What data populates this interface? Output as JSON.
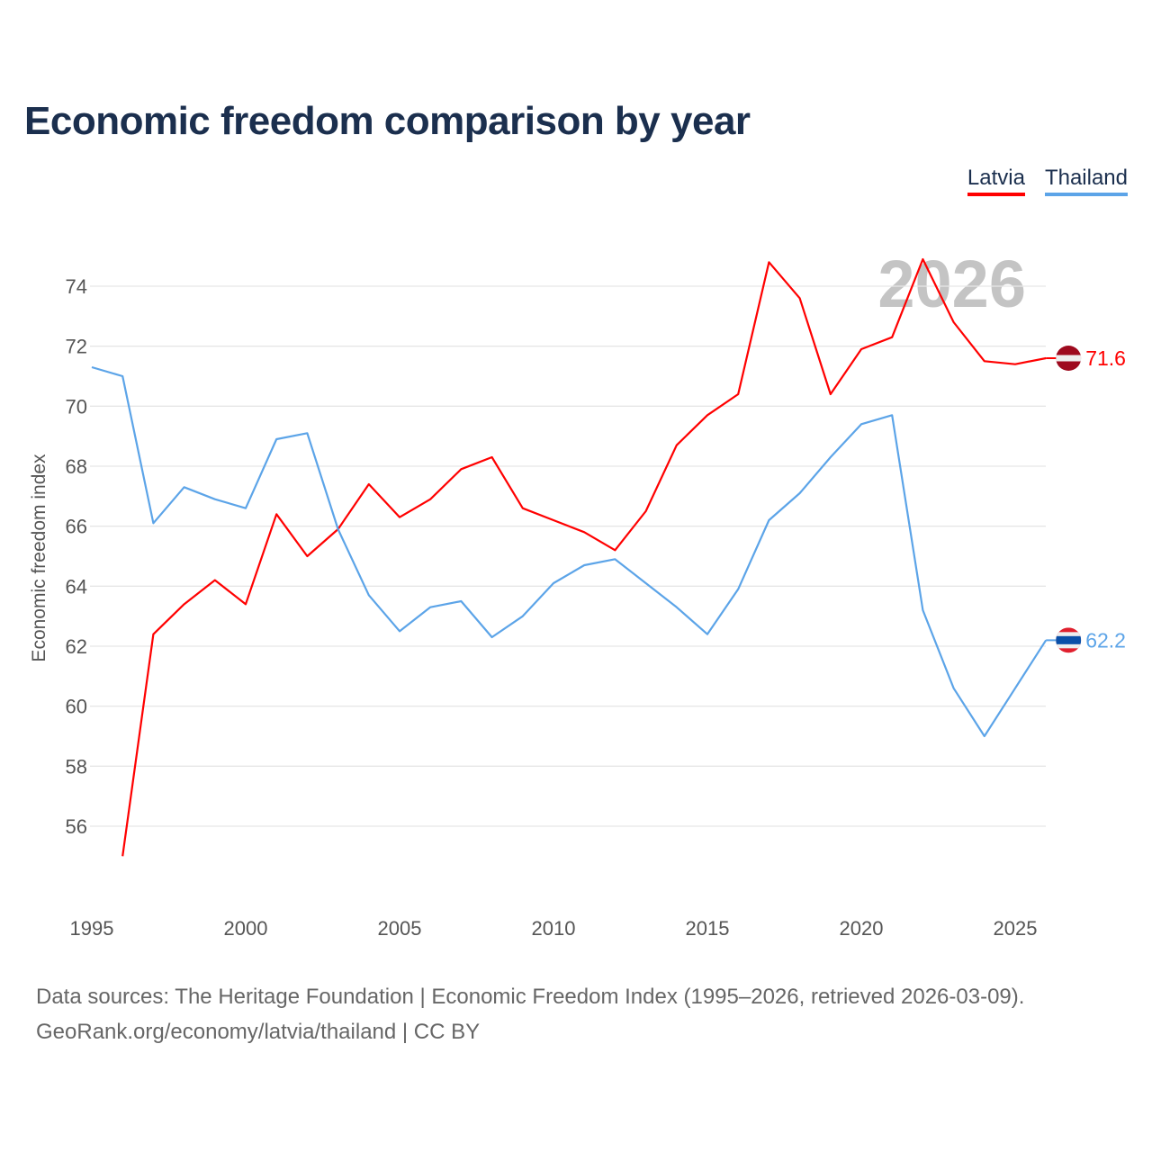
{
  "title": "Economic freedom comparison by year",
  "footer": {
    "line1": "Data sources: The Heritage Foundation | Economic Freedom Index (1995–2026, retrieved 2026-03-09).",
    "line2": "GeoRank.org/economy/latvia/thailand | CC BY"
  },
  "chart_data": {
    "type": "line",
    "title": "Economic freedom comparison by year",
    "xlabel": "",
    "ylabel": "Economic freedom index",
    "year_watermark": "2026",
    "xlim": [
      1995,
      2026
    ],
    "ylim": [
      54,
      76
    ],
    "xticks": [
      "1995",
      "2000",
      "2005",
      "2010",
      "2015",
      "2020",
      "2025"
    ],
    "yticks": [
      "56",
      "58",
      "60",
      "62",
      "64",
      "66",
      "68",
      "70",
      "72",
      "74"
    ],
    "legend_placement": "top-right",
    "series": [
      {
        "name": "Latvia",
        "color": "#ff0000",
        "end_label": "71.6",
        "x": [
          1996,
          1997,
          1998,
          1999,
          2000,
          2001,
          2002,
          2003,
          2004,
          2005,
          2006,
          2007,
          2008,
          2009,
          2010,
          2011,
          2012,
          2013,
          2014,
          2015,
          2016,
          2017,
          2018,
          2019,
          2020,
          2021,
          2022,
          2023,
          2024,
          2025,
          2026
        ],
        "values": [
          55.0,
          62.4,
          63.4,
          64.2,
          63.4,
          66.4,
          65.0,
          65.9,
          67.4,
          66.3,
          66.9,
          67.9,
          68.3,
          66.6,
          66.2,
          65.8,
          65.2,
          66.5,
          68.7,
          69.7,
          70.4,
          74.8,
          73.6,
          70.4,
          71.9,
          72.3,
          74.9,
          72.8,
          71.5,
          71.4,
          71.6
        ]
      },
      {
        "name": "Thailand",
        "color": "#5ca4e8",
        "end_label": "62.2",
        "x": [
          1995,
          1996,
          1997,
          1998,
          1999,
          2000,
          2001,
          2002,
          2003,
          2004,
          2005,
          2006,
          2007,
          2008,
          2009,
          2010,
          2011,
          2012,
          2013,
          2014,
          2015,
          2016,
          2017,
          2018,
          2019,
          2020,
          2021,
          2022,
          2023,
          2024,
          2025,
          2026
        ],
        "values": [
          71.3,
          71.0,
          66.1,
          67.3,
          66.9,
          66.6,
          68.9,
          69.1,
          65.9,
          63.7,
          62.5,
          63.3,
          63.5,
          62.3,
          63.0,
          64.1,
          64.7,
          64.9,
          64.1,
          63.3,
          62.4,
          63.9,
          66.2,
          67.1,
          68.3,
          69.4,
          69.7,
          63.2,
          60.6,
          59.0,
          60.6,
          62.2
        ]
      }
    ]
  }
}
